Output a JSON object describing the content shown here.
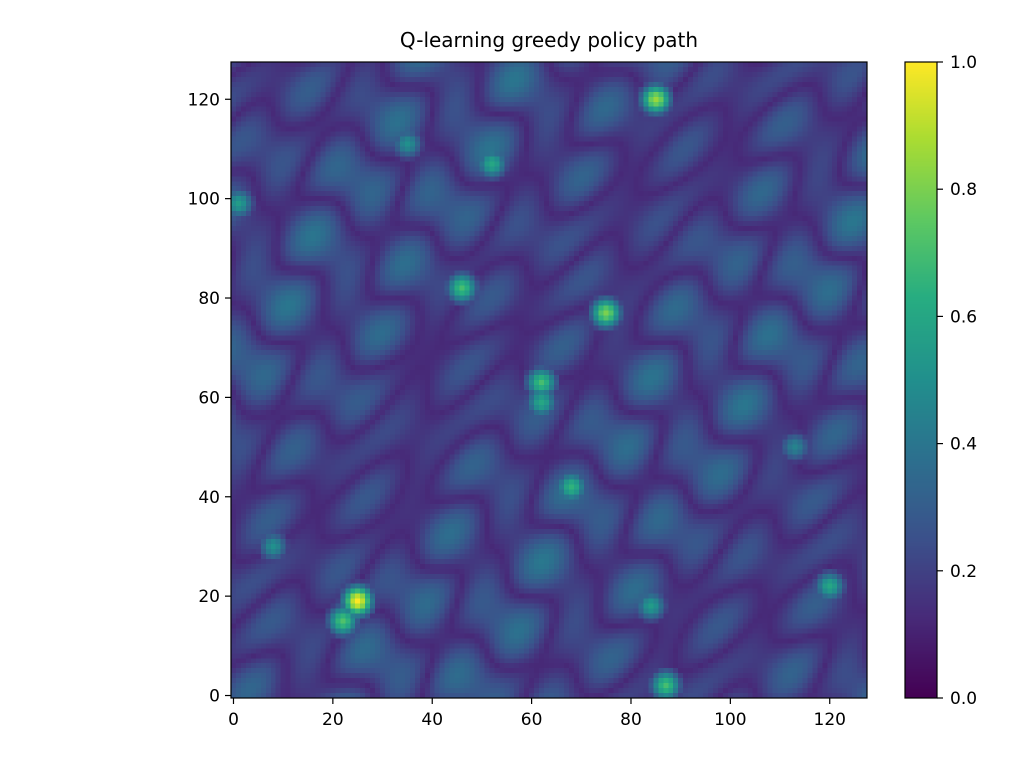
{
  "chart_data": {
    "type": "heatmap",
    "title": "Q-learning greedy policy path",
    "xlabel": "",
    "ylabel": "",
    "grid_size": [
      128,
      128
    ],
    "xlim": [
      -0.5,
      127.5
    ],
    "ylim": [
      -0.5,
      127.5
    ],
    "origin": "lower",
    "x_ticks": [
      0,
      20,
      40,
      60,
      80,
      100,
      120
    ],
    "y_ticks": [
      0,
      20,
      40,
      60,
      80,
      100,
      120
    ],
    "colormap": "viridis",
    "colorbar": {
      "range": [
        0.0,
        1.0
      ],
      "ticks": [
        0.0,
        0.2,
        0.4,
        0.6,
        0.8,
        1.0
      ],
      "tick_labels": [
        "0.0",
        "0.2",
        "0.4",
        "0.6",
        "0.8",
        "1.0"
      ]
    },
    "grid": false,
    "hotspots": [
      {
        "x": 25,
        "y": 19,
        "value": 1.0
      },
      {
        "x": 22,
        "y": 15,
        "value": 0.72
      },
      {
        "x": 85,
        "y": 120,
        "value": 0.85
      },
      {
        "x": 62,
        "y": 63,
        "value": 0.7
      },
      {
        "x": 62,
        "y": 59,
        "value": 0.6
      },
      {
        "x": 75,
        "y": 77,
        "value": 0.8
      },
      {
        "x": 46,
        "y": 82,
        "value": 0.7
      },
      {
        "x": 68,
        "y": 42,
        "value": 0.65
      },
      {
        "x": 87,
        "y": 2,
        "value": 0.7
      },
      {
        "x": 35,
        "y": 111,
        "value": 0.5
      },
      {
        "x": 52,
        "y": 107,
        "value": 0.6
      },
      {
        "x": 120,
        "y": 22,
        "value": 0.6
      },
      {
        "x": 84,
        "y": 18,
        "value": 0.55
      },
      {
        "x": 8,
        "y": 30,
        "value": 0.5
      },
      {
        "x": 1,
        "y": 99,
        "value": 0.55
      },
      {
        "x": 113,
        "y": 50,
        "value": 0.45
      }
    ]
  }
}
